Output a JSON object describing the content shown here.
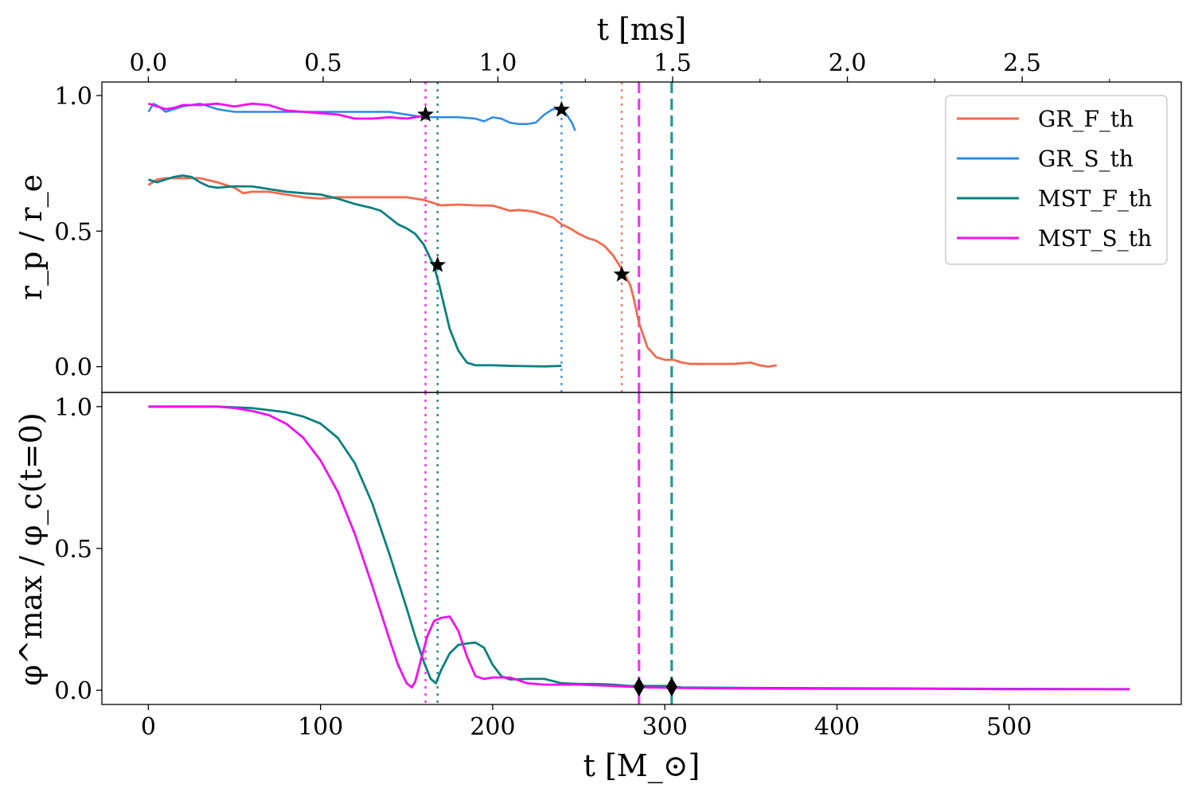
{
  "chart_data": [
    {
      "type": "line",
      "panel": "top",
      "ylabel": "r_p / r_e",
      "top_xlabel": "t [ms]",
      "xlim": [
        -27,
        600
      ],
      "ylim": [
        -0.095,
        1.05
      ],
      "top_axis_ticks": [
        "0.0",
        "0.5",
        "1.0",
        "1.5",
        "2.0",
        "2.5"
      ],
      "top_axis_tick_values": [
        0.0,
        0.5,
        1.0,
        1.5,
        2.0,
        2.5
      ],
      "ms_to_M": 203.03,
      "yticks": [
        "0.0",
        "0.5",
        "1.0"
      ],
      "ytick_values": [
        0.0,
        0.5,
        1.0
      ],
      "legend_position": "top-right",
      "series": [
        {
          "name": "GR_F_th",
          "color": "#f26a4f",
          "x": [
            0,
            5,
            10,
            20,
            30,
            40,
            50,
            55,
            60,
            70,
            80,
            90,
            100,
            110,
            120,
            130,
            140,
            150,
            160,
            170,
            180,
            190,
            200,
            205,
            210,
            215,
            220,
            225,
            230,
            235,
            240,
            245,
            250,
            255,
            260,
            265,
            270,
            275,
            280,
            282,
            285,
            290,
            295,
            300,
            305,
            310,
            315,
            320,
            330,
            340,
            350,
            355,
            360,
            365
          ],
          "y": [
            0.67,
            0.69,
            0.695,
            0.695,
            0.695,
            0.68,
            0.66,
            0.64,
            0.645,
            0.645,
            0.635,
            0.625,
            0.62,
            0.625,
            0.625,
            0.625,
            0.625,
            0.625,
            0.615,
            0.595,
            0.598,
            0.595,
            0.594,
            0.585,
            0.575,
            0.578,
            0.575,
            0.57,
            0.56,
            0.55,
            0.525,
            0.51,
            0.49,
            0.475,
            0.465,
            0.445,
            0.41,
            0.36,
            0.3,
            0.25,
            0.16,
            0.07,
            0.035,
            0.025,
            0.025,
            0.015,
            0.01,
            0.01,
            0.01,
            0.01,
            0.015,
            0.005,
            0.0,
            0.005
          ]
        },
        {
          "name": "GR_S_th",
          "color": "#2b8ae6",
          "x": [
            0,
            3,
            6,
            10,
            15,
            20,
            30,
            40,
            50,
            60,
            70,
            80,
            100,
            120,
            140,
            150,
            155,
            160,
            170,
            180,
            190,
            195,
            200,
            205,
            210,
            215,
            220,
            225,
            230,
            235,
            240,
            243,
            246,
            248
          ],
          "y": [
            0.94,
            0.97,
            0.96,
            0.94,
            0.95,
            0.96,
            0.97,
            0.95,
            0.94,
            0.94,
            0.94,
            0.94,
            0.94,
            0.94,
            0.94,
            0.93,
            0.925,
            0.92,
            0.92,
            0.92,
            0.915,
            0.905,
            0.92,
            0.915,
            0.9,
            0.895,
            0.895,
            0.9,
            0.93,
            0.95,
            0.95,
            0.93,
            0.9,
            0.87
          ]
        },
        {
          "name": "MST_F_th",
          "color": "#0a8080",
          "x": [
            0,
            5,
            10,
            15,
            20,
            25,
            30,
            35,
            40,
            50,
            60,
            70,
            80,
            90,
            100,
            110,
            120,
            130,
            135,
            140,
            145,
            150,
            155,
            160,
            163,
            166,
            169,
            172,
            175,
            180,
            185,
            190,
            195,
            200,
            210,
            220,
            230,
            240
          ],
          "y": [
            0.69,
            0.68,
            0.69,
            0.7,
            0.705,
            0.7,
            0.68,
            0.665,
            0.66,
            0.665,
            0.665,
            0.655,
            0.645,
            0.64,
            0.635,
            0.62,
            0.6,
            0.585,
            0.575,
            0.55,
            0.525,
            0.51,
            0.49,
            0.45,
            0.41,
            0.37,
            0.3,
            0.22,
            0.14,
            0.06,
            0.015,
            0.005,
            0.005,
            0.005,
            0.003,
            0.002,
            0.001,
            0.003
          ]
        },
        {
          "name": "MST_S_th",
          "color": "#f010f0",
          "x": [
            0,
            5,
            10,
            15,
            20,
            30,
            40,
            50,
            55,
            60,
            70,
            80,
            90,
            100,
            110,
            120,
            130,
            140,
            150,
            160
          ],
          "y": [
            0.97,
            0.96,
            0.95,
            0.955,
            0.965,
            0.965,
            0.97,
            0.96,
            0.965,
            0.97,
            0.965,
            0.945,
            0.94,
            0.935,
            0.93,
            0.915,
            0.915,
            0.92,
            0.915,
            0.925
          ]
        }
      ],
      "stars": [
        {
          "series": "MST_S_th",
          "x": 161,
          "y": 0.93
        },
        {
          "series": "GR_S_th",
          "x": 240,
          "y": 0.948
        },
        {
          "series": "MST_F_th",
          "x": 168,
          "y": 0.375
        },
        {
          "series": "GR_F_th",
          "x": 275,
          "y": 0.34
        }
      ]
    },
    {
      "type": "line",
      "panel": "bottom",
      "ylabel": "φ^max / φ_c(t=0)",
      "xlabel": "t [M_⊙]",
      "xlim": [
        -27,
        600
      ],
      "ylim": [
        -0.05,
        1.05
      ],
      "xticks": [
        "0",
        "100",
        "200",
        "300",
        "400",
        "500"
      ],
      "xtick_values": [
        0,
        100,
        200,
        300,
        400,
        500
      ],
      "yticks": [
        "0.0",
        "0.5",
        "1.0"
      ],
      "ytick_values": [
        0.0,
        0.5,
        1.0
      ],
      "series": [
        {
          "name": "MST_F_th",
          "color": "#0a8080",
          "x": [
            0,
            20,
            40,
            60,
            80,
            90,
            100,
            110,
            120,
            130,
            140,
            150,
            155,
            160,
            164,
            167,
            170,
            175,
            180,
            185,
            190,
            195,
            200,
            205,
            210,
            220,
            230,
            240,
            250,
            260,
            270,
            280,
            290,
            300,
            310,
            350,
            400,
            450,
            500,
            570
          ],
          "y": [
            1.0,
            1.0,
            1.0,
            0.995,
            0.98,
            0.965,
            0.94,
            0.89,
            0.8,
            0.66,
            0.48,
            0.29,
            0.19,
            0.1,
            0.04,
            0.025,
            0.07,
            0.13,
            0.16,
            0.165,
            0.168,
            0.15,
            0.09,
            0.05,
            0.038,
            0.04,
            0.04,
            0.025,
            0.022,
            0.022,
            0.02,
            0.015,
            0.015,
            0.015,
            0.01,
            0.008,
            0.007,
            0.006,
            0.005,
            0.004
          ]
        },
        {
          "name": "MST_S_th",
          "color": "#f010f0",
          "x": [
            0,
            20,
            40,
            50,
            60,
            70,
            80,
            90,
            100,
            110,
            120,
            130,
            140,
            145,
            150,
            153,
            155,
            158,
            162,
            166,
            170,
            175,
            180,
            185,
            190,
            195,
            200,
            210,
            220,
            230,
            240,
            250,
            270,
            290,
            310,
            350,
            400,
            450,
            500,
            570
          ],
          "y": [
            1.0,
            1.0,
            1.0,
            0.995,
            0.985,
            0.97,
            0.94,
            0.89,
            0.81,
            0.7,
            0.55,
            0.37,
            0.18,
            0.09,
            0.025,
            0.01,
            0.03,
            0.1,
            0.19,
            0.245,
            0.255,
            0.26,
            0.21,
            0.12,
            0.05,
            0.04,
            0.045,
            0.045,
            0.025,
            0.02,
            0.02,
            0.02,
            0.015,
            0.01,
            0.008,
            0.006,
            0.005,
            0.005,
            0.004,
            0.004
          ]
        }
      ],
      "diamonds": [
        {
          "series": "MST_S_th",
          "x": 285,
          "y": 0.012
        },
        {
          "series": "MST_F_th",
          "x": 304,
          "y": 0.012
        }
      ]
    }
  ],
  "vlines": [
    {
      "x": 161,
      "color": "#f010f0",
      "style": "dotted",
      "panels": "both"
    },
    {
      "x": 168,
      "color": "#0a8080",
      "style": "dotted",
      "panels": "both"
    },
    {
      "x": 240,
      "color": "#2b8ae6",
      "style": "dotted",
      "panels": "top"
    },
    {
      "x": 275,
      "color": "#f26a4f",
      "style": "dotted",
      "panels": "top"
    },
    {
      "x": 285,
      "color": "#f010f0",
      "style": "dashed",
      "panels": "both"
    },
    {
      "x": 304,
      "color": "#0a8080",
      "style": "dashed",
      "panels": "both"
    }
  ],
  "legend": [
    {
      "label": "GR_F_th",
      "color": "#f26a4f"
    },
    {
      "label": "GR_S_th",
      "color": "#2b8ae6"
    },
    {
      "label": "MST_F_th",
      "color": "#0a8080"
    },
    {
      "label": "MST_S_th",
      "color": "#f010f0"
    }
  ]
}
